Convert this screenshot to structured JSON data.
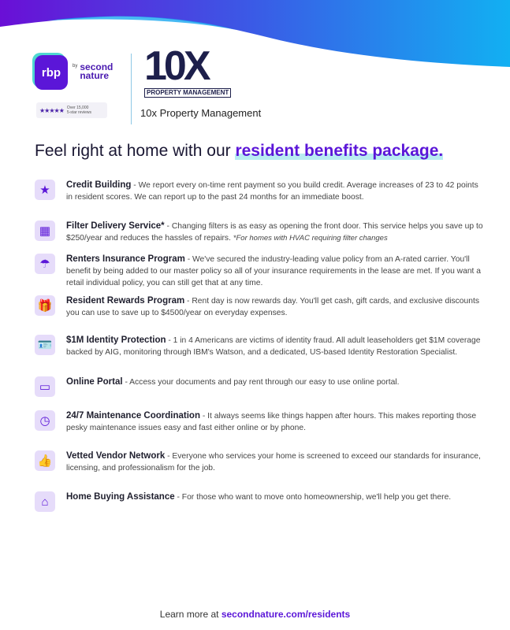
{
  "header": {
    "rbp_logo": "rbp",
    "by": "by",
    "second_nature": "second nature",
    "reviews_line1": "Over 15,000",
    "reviews_line2": "5-star reviews",
    "stars": "★★★★★",
    "tenx_logo": "10X",
    "tenx_band": "PROPERTY MANAGEMENT",
    "company_name": "10x Property Management"
  },
  "headline": {
    "lead": "Feel right at home with our ",
    "highlight": "resident benefits package."
  },
  "colors": {
    "accent": "#5b16d8",
    "dark": "#1a1733",
    "wave_start": "#6a0fd6",
    "wave_end": "#12b0f2"
  },
  "benefits": [
    {
      "icon": "credit-score-icon",
      "glyph": "★",
      "title": "Credit Building",
      "desc": " - We report every on-time rent payment so you build credit. Average increases of 23 to 42 points in resident scores. We can report up to the past 24 months for an immediate boost.",
      "note": ""
    },
    {
      "icon": "air-filter-icon",
      "glyph": "▦",
      "title": "Filter Delivery Service*",
      "desc": " - Changing filters is as easy as opening the front door. This service helps you save up to $250/year and reduces the hassles of repairs.  ",
      "note": "*For homes with HVAC requiring filter changes"
    },
    {
      "icon": "umbrella-icon",
      "glyph": "☂",
      "title": "Renters Insurance Program",
      "desc": " - We've secured the industry-leading value policy from an A-rated carrier. You'll benefit by being added to our master policy so all of your insurance requirements in the lease are met. If you want a retail individual policy, you can still get that at any time.",
      "note": ""
    },
    {
      "icon": "gift-icon",
      "glyph": "🎁",
      "title": "Resident Rewards Program",
      "desc": " - Rent day is now rewards day. You'll get cash, gift cards, and exclusive discounts you can use to save up to $4500/year on everyday expenses.",
      "note": ""
    },
    {
      "icon": "id-card-icon",
      "glyph": "🪪",
      "title": "$1M Identity Protection",
      "desc": " - 1 in 4 Americans are victims of identity fraud. All adult leaseholders get $1M coverage backed by AIG, monitoring through IBM's Watson, and a dedicated, US-based Identity Restoration Specialist.",
      "note": ""
    },
    {
      "icon": "monitor-icon",
      "glyph": "▭",
      "title": "Online Portal",
      "desc": " - Access your documents and pay rent through our easy to use online portal.",
      "note": ""
    },
    {
      "icon": "clock-icon",
      "glyph": "◷",
      "title": "24/7 Maintenance Coordination",
      "desc": " - It always seems like things happen after hours. This makes reporting those pesky maintenance issues easy and fast either online or by phone.",
      "note": ""
    },
    {
      "icon": "thumbs-up-icon",
      "glyph": "👍",
      "title": "Vetted Vendor Network",
      "desc": " - Everyone who services your home is screened to exceed our standards for insurance, licensing, and professionalism for the job.",
      "note": ""
    },
    {
      "icon": "house-person-icon",
      "glyph": "⌂",
      "title": "Home Buying Assistance",
      "desc": " - For those who want to move onto homeownership, we'll help you get there.",
      "note": ""
    }
  ],
  "footer": {
    "lead": "Learn more at ",
    "link": "secondnature.com/residents"
  }
}
